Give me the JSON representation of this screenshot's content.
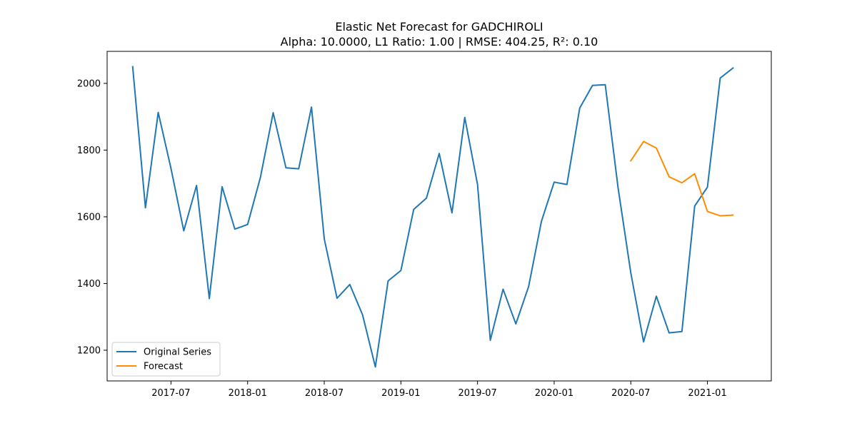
{
  "chart_data": {
    "type": "line",
    "title": "Elastic Net Forecast for GADCHIROLI",
    "subtitle": "Alpha: 10.0000, L1 Ratio: 1.00 | RMSE: 404.25, R²: 0.10",
    "xlabel": "",
    "ylabel": "",
    "x_ticks": [
      "2017-07",
      "2018-01",
      "2018-07",
      "2019-01",
      "2019-07",
      "2020-01",
      "2020-07",
      "2021-01"
    ],
    "y_ticks": [
      1200,
      1400,
      1600,
      1800,
      2000
    ],
    "xlim": [
      "2017-02",
      "2021-06"
    ],
    "ylim": [
      1108,
      2096
    ],
    "grid": false,
    "legend_position": "lower-left",
    "series": [
      {
        "name": "Original Series",
        "color": "#1f77b4",
        "x": [
          "2017-04",
          "2017-05",
          "2017-06",
          "2017-07",
          "2017-08",
          "2017-09",
          "2017-10",
          "2017-11",
          "2017-12",
          "2018-01",
          "2018-02",
          "2018-03",
          "2018-04",
          "2018-05",
          "2018-06",
          "2018-07",
          "2018-08",
          "2018-09",
          "2018-10",
          "2018-11",
          "2018-12",
          "2019-01",
          "2019-02",
          "2019-03",
          "2019-04",
          "2019-05",
          "2019-06",
          "2019-07",
          "2019-08",
          "2019-09",
          "2019-10",
          "2019-11",
          "2019-12",
          "2020-01",
          "2020-02",
          "2020-03",
          "2020-04",
          "2020-05",
          "2020-06",
          "2020-07",
          "2020-08",
          "2020-09",
          "2020-10",
          "2020-11",
          "2020-12",
          "2021-01",
          "2021-02",
          "2021-03"
        ],
        "values": [
          2050,
          1627,
          1913,
          1745,
          1558,
          1694,
          1355,
          1690,
          1563,
          1577,
          1718,
          1912,
          1747,
          1744,
          1929,
          1534,
          1356,
          1397,
          1306,
          1150,
          1408,
          1439,
          1622,
          1656,
          1790,
          1612,
          1898,
          1697,
          1230,
          1383,
          1279,
          1391,
          1586,
          1704,
          1697,
          1926,
          1994,
          1996,
          1688,
          1432,
          1225,
          1362,
          1252,
          1256,
          1632,
          1689,
          2016,
          2046
        ]
      },
      {
        "name": "Forecast",
        "color": "#ff8c00",
        "x": [
          "2020-07",
          "2020-08",
          "2020-09",
          "2020-10",
          "2020-11",
          "2020-12",
          "2021-01",
          "2021-02",
          "2021-03"
        ],
        "values": [
          1768,
          1826,
          1806,
          1720,
          1702,
          1729,
          1616,
          1603,
          1605
        ]
      }
    ]
  }
}
